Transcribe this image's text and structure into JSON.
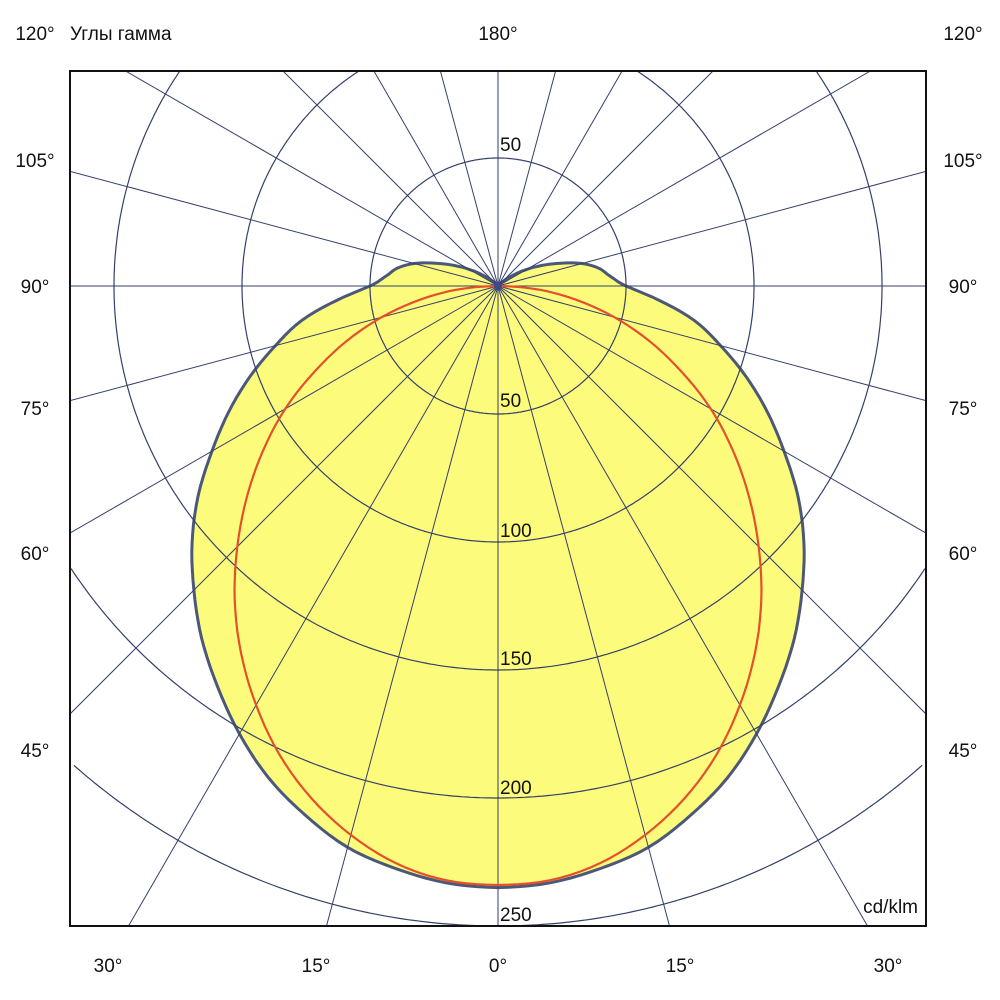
{
  "chart_data": {
    "type": "line",
    "coordinate_system": "polar",
    "title": "Углы гамма",
    "unit_label": "cd/klm",
    "radial_ticks": [
      50,
      100,
      150,
      200,
      250,
      300
    ],
    "radial_tick_labels": [
      "50",
      "100",
      "150",
      "200",
      "250"
    ],
    "top_ring_label": "50",
    "angle_step_deg": 15,
    "angle_labels": {
      "top_left": "120°",
      "top_center": "180°",
      "top_right": "120°",
      "left": [
        "105°",
        "90°",
        "75°",
        "60°",
        "45°"
      ],
      "right": [
        "105°",
        "90°",
        "75°",
        "60°",
        "45°"
      ],
      "bottom": [
        "30°",
        "15°",
        "0°",
        "15°",
        "30°"
      ]
    },
    "gamma_deg": [
      0,
      5,
      10,
      15,
      20,
      25,
      30,
      35,
      40,
      45,
      50,
      55,
      60,
      65,
      70,
      75,
      80,
      85,
      90,
      95,
      100,
      105,
      110,
      115,
      120,
      125,
      130,
      135,
      140,
      150,
      165,
      180
    ],
    "series": [
      {
        "style": "filled",
        "fill_color": "#fdfb7c",
        "line_color": "#4b5878",
        "values": [
          235,
          234,
          231,
          227,
          220,
          212,
          202,
          191,
          180,
          168,
          156,
          143,
          129,
          116,
          103,
          90,
          78,
          63,
          50,
          44,
          40,
          34,
          26,
          19,
          13,
          8,
          4,
          2,
          0,
          0,
          0,
          0
        ]
      },
      {
        "style": "line",
        "line_color": "#e5502c",
        "values": [
          234,
          233,
          229,
          222,
          213,
          202,
          189,
          175,
          160,
          144,
          128,
          112,
          96,
          79,
          63,
          47,
          31,
          16,
          0,
          0,
          0,
          0,
          0,
          0,
          0,
          0,
          0,
          0,
          0,
          0,
          0,
          0
        ]
      }
    ],
    "grid": true,
    "grid_color": "#34406a"
  }
}
